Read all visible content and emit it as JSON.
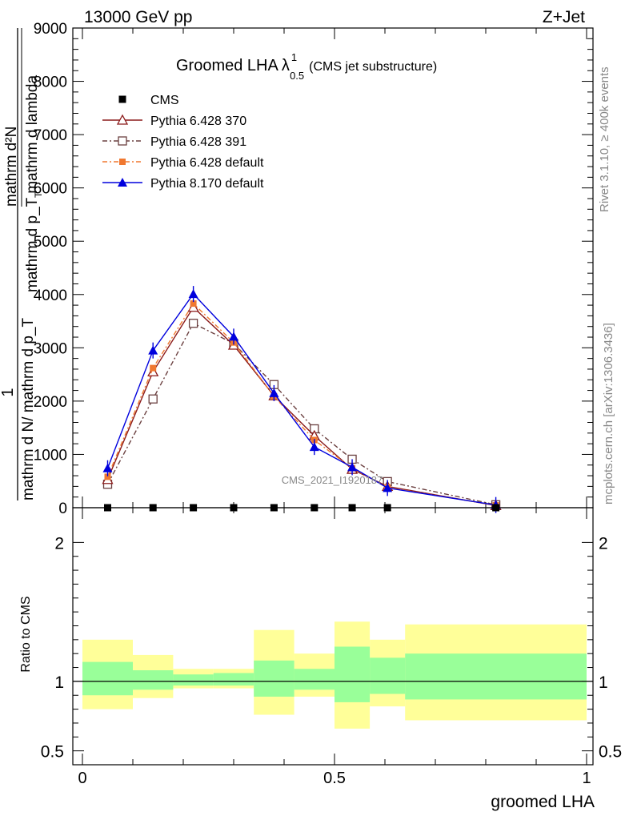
{
  "header": {
    "energy_label": "13000 GeV pp",
    "process_label": "Z+Jet"
  },
  "side_labels": {
    "rivet": "Rivet 3.1.10, ≥ 400k events",
    "mcplots": "mcplots.cern.ch [arXiv:1306.3436]"
  },
  "watermark": "CMS_2021_I1920187",
  "chart_data": [
    {
      "type": "line",
      "title": "Groomed LHA",
      "title_symbol": "λ",
      "title_sup": "1",
      "title_sub": "0.5",
      "subtitle": "(CMS jet substructure)",
      "ylabel_one": "1",
      "ylabel_lines": [
        "mathrm d N/ mathrm d p_T",
        "mathrm d²N",
        "mathrm d p_T mathrm d lambda"
      ],
      "ylabel_sub": "T",
      "ylim": [
        0,
        9000
      ],
      "yticks": [
        0,
        1000,
        2000,
        3000,
        4000,
        5000,
        6000,
        7000,
        8000,
        9000
      ],
      "ytick_labels": [
        "0",
        "1000",
        "2000",
        "3000",
        "4000",
        "5000",
        "6000",
        "7000",
        "8000",
        "9000"
      ],
      "xlim": [
        0,
        1
      ],
      "legend_position": "top-left",
      "series": [
        {
          "name": "CMS",
          "color": "#000000",
          "marker": "square-filled",
          "x": [
            0.05,
            0.14,
            0.22,
            0.3,
            0.38,
            0.46,
            0.535,
            0.605,
            0.82
          ],
          "values": [
            0,
            0,
            0,
            0,
            0,
            0,
            0,
            0,
            0
          ]
        },
        {
          "name": "Pythia 6.428 370",
          "color": "#8b1a1a",
          "marker": "triangle-open",
          "dash": "",
          "x": [
            0.05,
            0.14,
            0.22,
            0.3,
            0.38,
            0.46,
            0.535,
            0.605,
            0.82
          ],
          "values": [
            530,
            2550,
            3760,
            3050,
            2100,
            1350,
            720,
            400,
            40
          ]
        },
        {
          "name": "Pythia 6.428 391",
          "color": "#6b4040",
          "marker": "square-open",
          "dash": "6,3,2,3",
          "x": [
            0.05,
            0.14,
            0.22,
            0.3,
            0.38,
            0.46,
            0.535,
            0.605,
            0.82
          ],
          "values": [
            440,
            2040,
            3460,
            3080,
            2310,
            1480,
            910,
            490,
            55
          ]
        },
        {
          "name": "Pythia 6.428 default",
          "color": "#f07830",
          "marker": "square-filled-small",
          "dash": "6,3,2,3",
          "x": [
            0.05,
            0.14,
            0.22,
            0.3,
            0.38,
            0.46,
            0.535,
            0.605,
            0.82
          ],
          "values": [
            580,
            2620,
            3830,
            3100,
            2090,
            1270,
            740,
            380,
            45
          ]
        },
        {
          "name": "Pythia 8.170 default",
          "color": "#0000dd",
          "marker": "triangle-filled",
          "dash": "",
          "x": [
            0.05,
            0.14,
            0.22,
            0.3,
            0.38,
            0.46,
            0.535,
            0.605,
            0.82
          ],
          "values": [
            740,
            2950,
            4010,
            3210,
            2150,
            1140,
            760,
            370,
            50
          ]
        }
      ]
    },
    {
      "type": "area",
      "ylabel": "Ratio to CMS",
      "xlabel": "groomed LHA",
      "xlim": [
        0,
        1
      ],
      "xticks": [
        0,
        0.5,
        1
      ],
      "xtick_labels": [
        "0",
        "0.5",
        "1"
      ],
      "ylim": [
        0.4,
        2.25
      ],
      "yticks": [
        0.5,
        1,
        2
      ],
      "ytick_labels": [
        "0.5",
        "1",
        "2"
      ],
      "band_colors": {
        "outer": "#ffff99",
        "inner": "#99ff99"
      },
      "bins": [
        {
          "x0": 0.0,
          "x1": 0.1,
          "outer": [
            0.8,
            1.3
          ],
          "inner": [
            0.9,
            1.14
          ]
        },
        {
          "x0": 0.1,
          "x1": 0.18,
          "outer": [
            0.88,
            1.19
          ],
          "inner": [
            0.94,
            1.08
          ]
        },
        {
          "x0": 0.18,
          "x1": 0.26,
          "outer": [
            0.95,
            1.09
          ],
          "inner": [
            0.97,
            1.05
          ]
        },
        {
          "x0": 0.26,
          "x1": 0.34,
          "outer": [
            0.95,
            1.09
          ],
          "inner": [
            0.97,
            1.06
          ]
        },
        {
          "x0": 0.34,
          "x1": 0.42,
          "outer": [
            0.76,
            1.37
          ],
          "inner": [
            0.89,
            1.15
          ]
        },
        {
          "x0": 0.42,
          "x1": 0.5,
          "outer": [
            0.89,
            1.2
          ],
          "inner": [
            0.94,
            1.09
          ]
        },
        {
          "x0": 0.5,
          "x1": 0.57,
          "outer": [
            0.66,
            1.43
          ],
          "inner": [
            0.85,
            1.25
          ]
        },
        {
          "x0": 0.57,
          "x1": 0.64,
          "outer": [
            0.82,
            1.3
          ],
          "inner": [
            0.91,
            1.17
          ]
        },
        {
          "x0": 0.64,
          "x1": 1.0,
          "outer": [
            0.72,
            1.41
          ],
          "inner": [
            0.87,
            1.2
          ]
        }
      ]
    }
  ]
}
